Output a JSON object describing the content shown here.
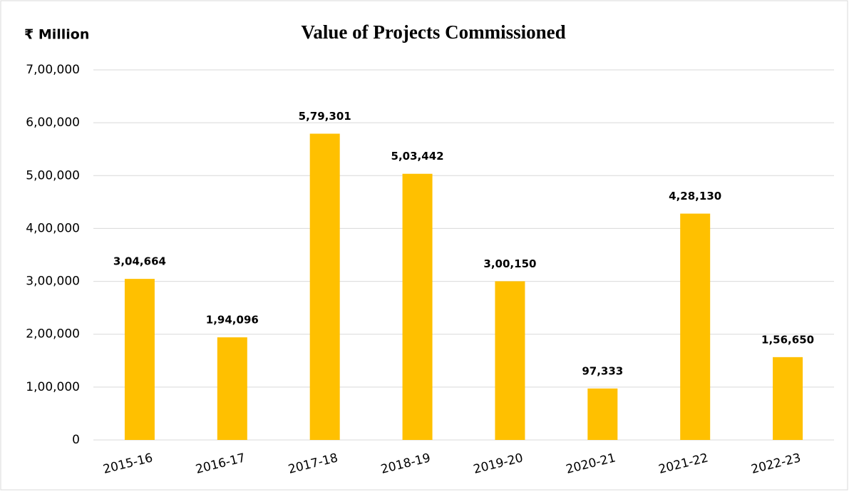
{
  "chart_data": {
    "type": "bar",
    "title": "Value of Projects Commissioned",
    "y_label": "₹ Million",
    "categories": [
      "2015-16",
      "2016-17",
      "2017-18",
      "2018-19",
      "2019-20",
      "2020-21",
      "2021-22",
      "2022-23"
    ],
    "values": [
      304664,
      194096,
      579301,
      503442,
      300150,
      97333,
      428130,
      156650
    ],
    "value_labels": [
      "3,04,664",
      "1,94,096",
      "5,79,301",
      "5,03,442",
      "3,00,150",
      "97,333",
      "4,28,130",
      "1,56,650"
    ],
    "color": "#ffc000",
    "ylim": [
      0,
      700000
    ],
    "yticks": [
      0,
      {
        "value": 100000,
        "label": "1,00,000"
      },
      {
        "value": 200000,
        "label": "2,00,000"
      },
      {
        "value": 300000,
        "label": "3,00,000"
      },
      {
        "value": 400000,
        "label": "4,00,000"
      },
      {
        "value": 500000,
        "label": "5,00,000"
      },
      {
        "value": 600000,
        "label": "6,00,000"
      },
      {
        "value": 700000,
        "label": "7,00,000"
      }
    ],
    "grid": true
  }
}
